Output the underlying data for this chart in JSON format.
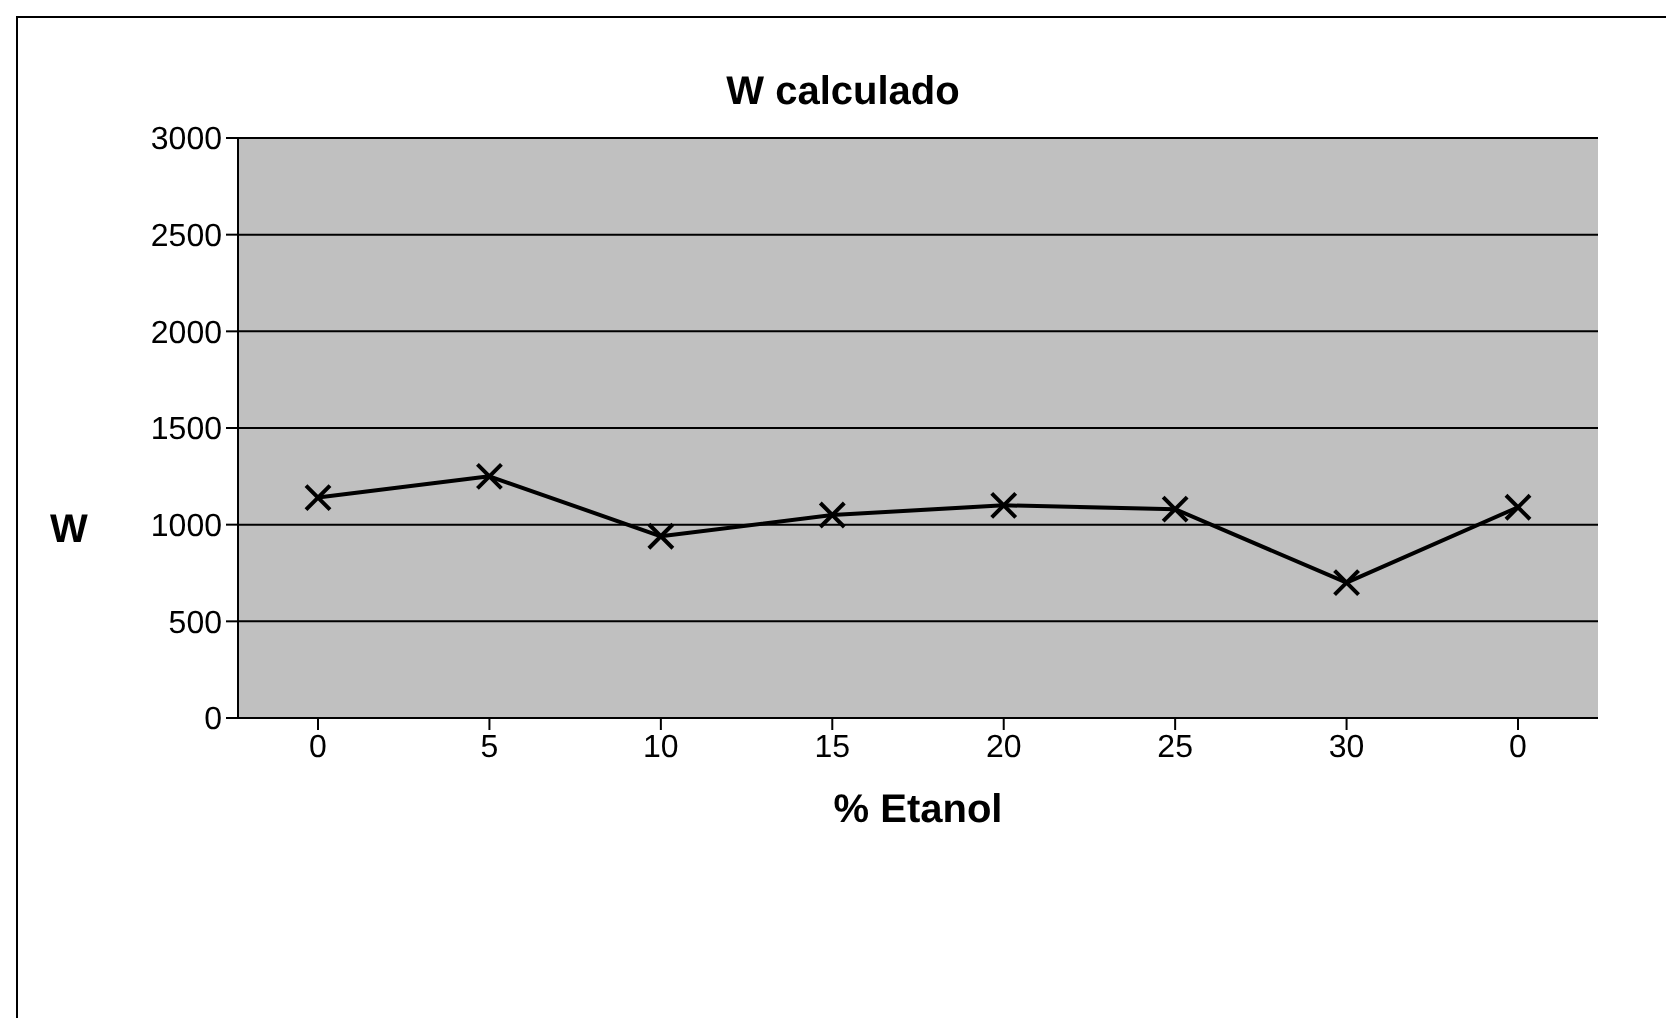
{
  "chart_data": {
    "type": "line",
    "title": "W calculado",
    "xlabel": "% Etanol",
    "ylabel": "W",
    "categories": [
      "0",
      "5",
      "10",
      "15",
      "20",
      "25",
      "30",
      "0"
    ],
    "series": [
      {
        "color": "#000000",
        "values": [
          1140,
          1250,
          940,
          1050,
          1100,
          1080,
          700,
          1090
        ]
      }
    ],
    "ylim": [
      0,
      3000
    ],
    "yticks": [
      0,
      500,
      1000,
      1500,
      2000,
      2500,
      3000
    ],
    "grid": "y",
    "marker": "cross",
    "line_style": "solid"
  }
}
